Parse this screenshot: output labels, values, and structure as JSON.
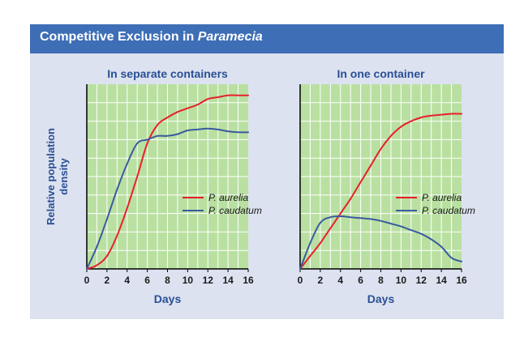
{
  "figure": {
    "title_main": "Competitive Exclusion in",
    "title_italic": "Paramecia",
    "background_color": "#dce2ef",
    "title_bar_color": "#3d6eb6"
  },
  "colors": {
    "plot_bg": "#b9e0a1",
    "grid": "#ffffff",
    "aurelia": "#e8202b",
    "caudatum": "#3a5aa0",
    "label": "#2a4f95"
  },
  "chart_data": [
    {
      "type": "line",
      "title": "In separate containers",
      "xlabel": "Days",
      "ylabel": "Relative population density",
      "xlim": [
        0,
        16
      ],
      "ylim": [
        0,
        1
      ],
      "x_ticks": [
        0,
        2,
        4,
        6,
        8,
        10,
        12,
        14,
        16
      ],
      "grid": true,
      "legend": "center-right",
      "series": [
        {
          "name": "P. aurelia",
          "color": "#e8202b",
          "x": [
            0,
            1,
            2,
            3,
            4,
            5,
            6,
            7,
            8,
            9,
            10,
            11,
            12,
            13,
            14,
            15,
            16
          ],
          "y": [
            0,
            0.02,
            0.07,
            0.18,
            0.33,
            0.5,
            0.68,
            0.78,
            0.82,
            0.85,
            0.87,
            0.89,
            0.92,
            0.93,
            0.94,
            0.94,
            0.94
          ]
        },
        {
          "name": "P. caudatum",
          "color": "#3a5aa0",
          "x": [
            0,
            1,
            2,
            3,
            4,
            5,
            6,
            7,
            8,
            9,
            10,
            11,
            12,
            13,
            14,
            15,
            16
          ],
          "y": [
            0,
            0.12,
            0.27,
            0.43,
            0.57,
            0.68,
            0.7,
            0.72,
            0.72,
            0.73,
            0.75,
            0.755,
            0.76,
            0.755,
            0.745,
            0.74,
            0.74
          ]
        }
      ]
    },
    {
      "type": "line",
      "title": "In one container",
      "xlabel": "Days",
      "ylabel": "",
      "xlim": [
        0,
        16
      ],
      "ylim": [
        0,
        1
      ],
      "x_ticks": [
        0,
        2,
        4,
        6,
        8,
        10,
        12,
        14,
        16
      ],
      "grid": true,
      "legend": "center-right",
      "series": [
        {
          "name": "P. aurelia",
          "color": "#e8202b",
          "x": [
            0,
            1,
            2,
            3,
            4,
            5,
            6,
            7,
            8,
            9,
            10,
            11,
            12,
            13,
            14,
            15,
            16
          ],
          "y": [
            0,
            0.07,
            0.14,
            0.22,
            0.3,
            0.38,
            0.47,
            0.56,
            0.65,
            0.72,
            0.77,
            0.8,
            0.82,
            0.83,
            0.835,
            0.84,
            0.84
          ]
        },
        {
          "name": "P. caudatum",
          "color": "#3a5aa0",
          "x": [
            0,
            1,
            2,
            3,
            4,
            5,
            6,
            7,
            8,
            9,
            10,
            11,
            12,
            13,
            14,
            15,
            16
          ],
          "y": [
            0,
            0.14,
            0.25,
            0.28,
            0.285,
            0.28,
            0.275,
            0.27,
            0.26,
            0.245,
            0.23,
            0.21,
            0.19,
            0.16,
            0.12,
            0.06,
            0.04
          ]
        }
      ]
    }
  ]
}
